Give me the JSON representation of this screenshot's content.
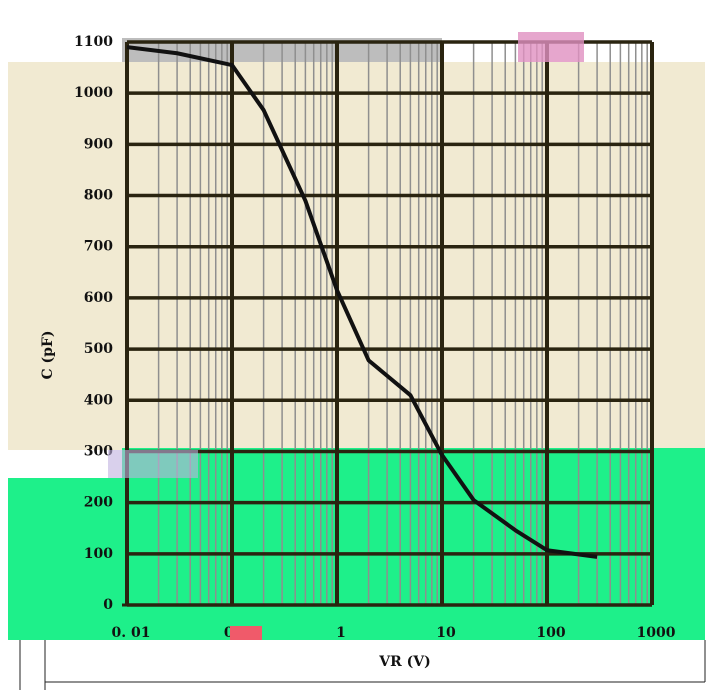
{
  "chart_data": {
    "type": "line",
    "x_label": "VR (V)",
    "y_label": "C (pF)",
    "xscale": "log",
    "grid": true,
    "xlim": [
      0.01,
      1000
    ],
    "ylim": [
      0,
      1100
    ],
    "xticks": [
      {
        "value": 0.01,
        "label": "0. 01"
      },
      0.1,
      1,
      10,
      100,
      1000
    ],
    "yticks": [
      0,
      100,
      200,
      300,
      400,
      500,
      600,
      700,
      800,
      900,
      1000,
      1100
    ],
    "series": [
      {
        "color": "#111111",
        "x": [
          0.01,
          0.03,
          0.1,
          0.2,
          0.5,
          1,
          2,
          5,
          10,
          20,
          50,
          100,
          300
        ],
        "values": [
          1090,
          1078,
          1055,
          967,
          790,
          615,
          478,
          410,
          293,
          205,
          146,
          107,
          94
        ]
      }
    ]
  }
}
